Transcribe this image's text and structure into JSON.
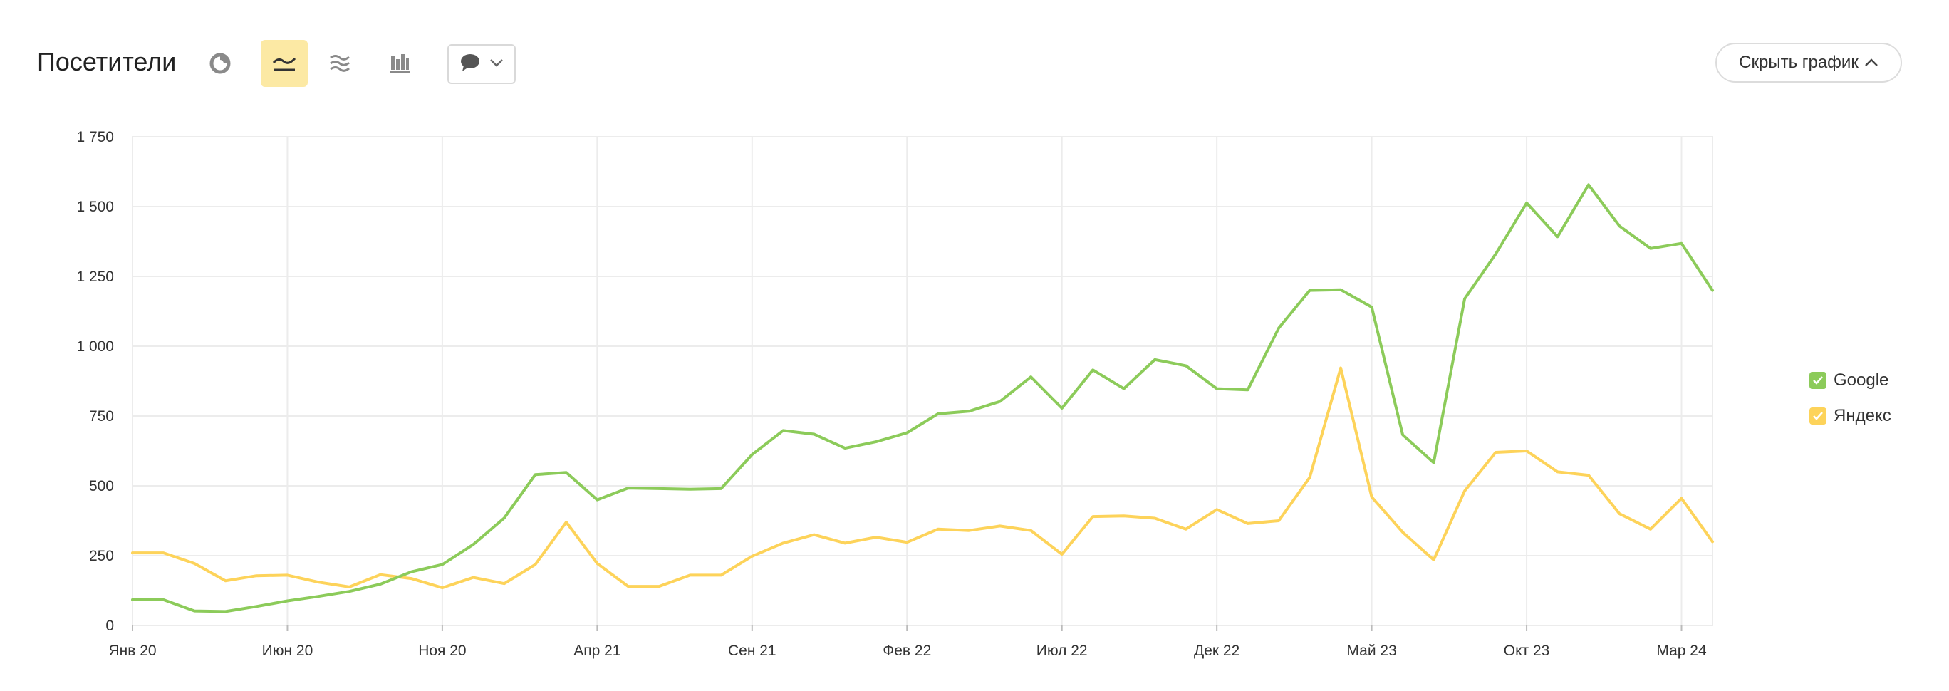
{
  "header": {
    "title": "Посетители",
    "hide_chart_label": "Скрыть график"
  },
  "toolbar": {
    "icons": [
      "pie-chart-icon",
      "line-chart-icon",
      "stacked-area-icon",
      "bar-chart-icon",
      "comment-icon"
    ],
    "active": "line-chart-icon"
  },
  "colors": {
    "google": "#8ccb5a",
    "yandex": "#fdd35a",
    "active_tool_bg": "#fce9a4",
    "grid": "#ececec"
  },
  "chart_data": {
    "type": "line",
    "x": [
      "Янв 20",
      "Фев 20",
      "Мар 20",
      "Апр 20",
      "Май 20",
      "Июн 20",
      "Июл 20",
      "Авг 20",
      "Сен 20",
      "Окт 20",
      "Ноя 20",
      "Дек 20",
      "Янв 21",
      "Фев 21",
      "Мар 21",
      "Апр 21",
      "Май 21",
      "Июн 21",
      "Июл 21",
      "Авг 21",
      "Сен 21",
      "Окт 21",
      "Ноя 21",
      "Дек 21",
      "Янв 22",
      "Фев 22",
      "Мар 22",
      "Апр 22",
      "Май 22",
      "Июн 22",
      "Июл 22",
      "Авг 22",
      "Сен 22",
      "Окт 22",
      "Ноя 22",
      "Дек 22",
      "Янв 23",
      "Фев 23",
      "Мар 23",
      "Апр 23",
      "Май 23",
      "Июн 23",
      "Июл 23",
      "Авг 23",
      "Сен 23",
      "Окт 23",
      "Ноя 23",
      "Дек 23",
      "Янв 24",
      "Фев 24",
      "Мар 24",
      "Апр 24"
    ],
    "x_tick_labels": [
      "Янв 20",
      "Июн 20",
      "Ноя 20",
      "Апр 21",
      "Сен 21",
      "Фев 22",
      "Июл 22",
      "Дек 22",
      "Май 23",
      "Окт 23",
      "Мар 24"
    ],
    "x_tick_indices": [
      0,
      5,
      10,
      15,
      20,
      25,
      30,
      35,
      40,
      45,
      50
    ],
    "y_ticks": [
      0,
      250,
      500,
      750,
      1000,
      1250,
      1500,
      1750
    ],
    "y_tick_labels": [
      "0",
      "250",
      "500",
      "750",
      "1 000",
      "1 250",
      "1 500",
      "1 750"
    ],
    "ylim": [
      0,
      1750
    ],
    "grid": true,
    "legend_position": "right",
    "series": [
      {
        "name": "Google",
        "color": "#8ccb5a",
        "values": [
          92,
          92,
          52,
          50,
          68,
          88,
          104,
          122,
          148,
          192,
          218,
          290,
          385,
          540,
          548,
          450,
          492,
          490,
          488,
          490,
          612,
          698,
          685,
          635,
          658,
          690,
          758,
          767,
          802,
          890,
          778,
          915,
          848,
          952,
          930,
          848,
          844,
          1065,
          1200,
          1202,
          1140,
          683,
          583,
          1170,
          1330,
          1513,
          1392,
          1578,
          1430,
          1350,
          1368,
          1200
        ]
      },
      {
        "name": "Яндекс",
        "color": "#fdd35a",
        "values": [
          260,
          260,
          222,
          160,
          178,
          180,
          155,
          138,
          182,
          168,
          135,
          172,
          150,
          218,
          370,
          222,
          140,
          140,
          180,
          180,
          248,
          295,
          325,
          295,
          316,
          298,
          345,
          340,
          356,
          340,
          255,
          390,
          392,
          384,
          345,
          415,
          365,
          375,
          530,
          922,
          460,
          334,
          235,
          482,
          620,
          625,
          550,
          538,
          400,
          345,
          455,
          300
        ]
      }
    ]
  }
}
